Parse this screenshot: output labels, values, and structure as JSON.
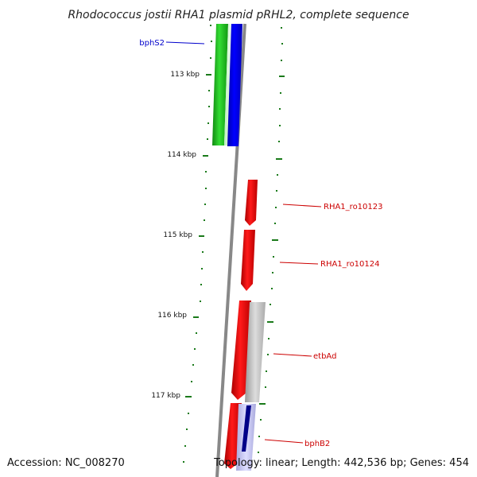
{
  "title": "Rhodococcus jostii RHA1 plasmid pRHL2, complete sequence",
  "ticks": [
    "113 kbp",
    "114 kbp",
    "115 kbp",
    "116 kbp",
    "117 kbp"
  ],
  "genes": [
    {
      "name": "bphS2",
      "color": "#0000cc",
      "strand": "forward"
    },
    {
      "name": "RHA1_ro10123",
      "color": "#cc0000",
      "strand": "reverse"
    },
    {
      "name": "RHA1_ro10124",
      "color": "#cc0000",
      "strand": "reverse"
    },
    {
      "name": "etbAd",
      "color": "#cc0000",
      "strand": "reverse"
    },
    {
      "name": "bphB2",
      "color": "#cc0000",
      "strand": "reverse"
    }
  ],
  "colors": {
    "backbone": "#777777",
    "tick": "#1a7a1a",
    "cds_forward_green": "#22cc22",
    "cds_blue": "#0000ee",
    "cds_red": "#ee0000",
    "cds_grey": "#bbbbbb"
  },
  "footer": {
    "accession": "Accession: NC_008270",
    "summary": "Topology: linear; Length: 442,536 bp; Genes: 454"
  }
}
